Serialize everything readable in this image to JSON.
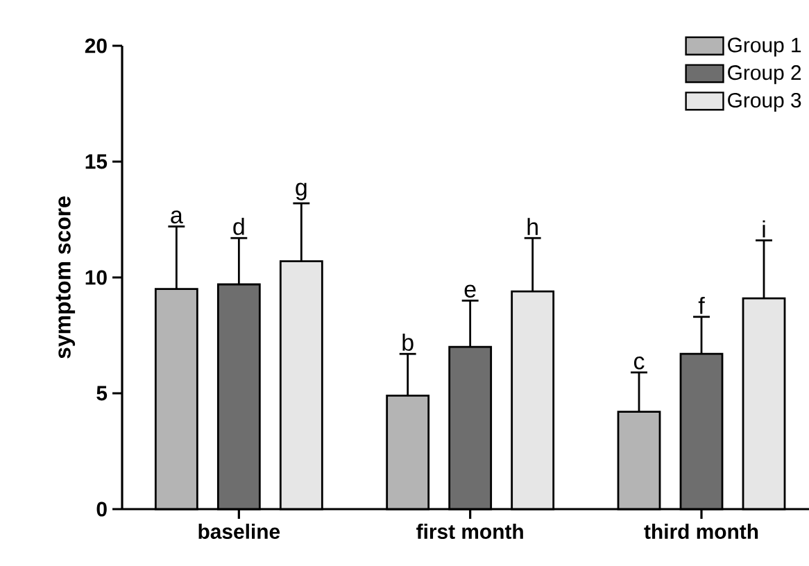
{
  "chart_data": {
    "type": "bar",
    "ylabel": "symptom score",
    "categories": [
      "baseline",
      "first month",
      "third month"
    ],
    "series": [
      {
        "name": "Group 1",
        "color": "#b4b4b4",
        "values": [
          9.5,
          4.9,
          4.2
        ],
        "errors": [
          2.7,
          1.8,
          1.7
        ]
      },
      {
        "name": "Group 2",
        "color": "#6e6e6e",
        "values": [
          9.7,
          7.0,
          6.7
        ],
        "errors": [
          2.0,
          2.0,
          1.6
        ]
      },
      {
        "name": "Group 3",
        "color": "#e6e6e6",
        "values": [
          10.7,
          9.4,
          9.1
        ],
        "errors": [
          2.5,
          2.3,
          2.5
        ]
      }
    ],
    "ylim": [
      0,
      20
    ],
    "yticks": [
      0,
      5,
      10,
      15,
      20
    ],
    "legend": "top right",
    "annotations": [
      "a",
      "d",
      "g",
      "b",
      "e",
      "h",
      "c",
      "f",
      "i"
    ]
  }
}
